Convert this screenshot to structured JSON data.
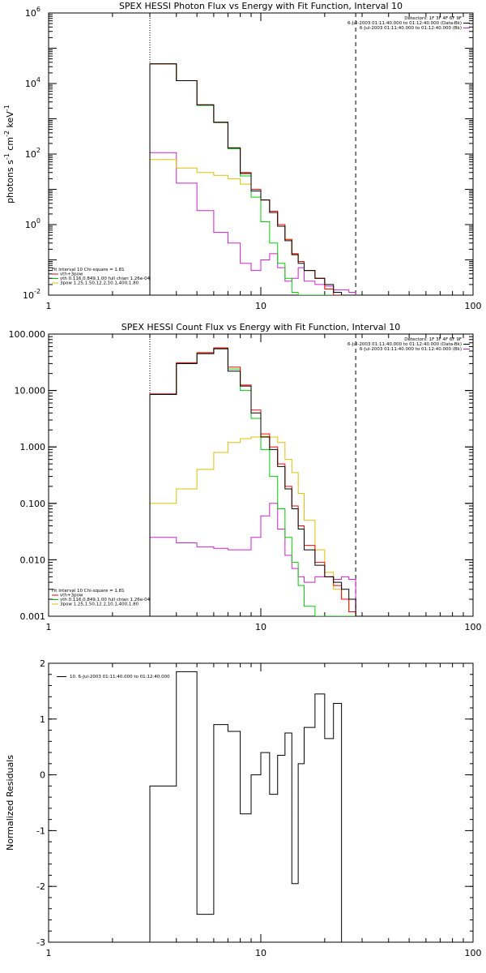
{
  "chart_data": [
    {
      "type": "line",
      "title": "SPEX HESSI Photon Flux vs Energy with Fit Function, Interval 10",
      "ylabel_main": "photons s",
      "ylabel_sup1": "-1",
      "ylabel_mid": " cm",
      "ylabel_sup2": "-2",
      "ylabel_end": " keV",
      "ylabel_sup3": "-1",
      "xscale": "log",
      "yscale": "log",
      "xlim": [
        1,
        100
      ],
      "ylim": [
        0.01,
        1000000
      ],
      "x_ticks": [
        {
          "v": 1,
          "label": "1"
        },
        {
          "v": 10,
          "label": "10"
        },
        {
          "v": 100,
          "label": "100"
        }
      ],
      "y_ticks": [
        {
          "v": 0.01,
          "base": "10",
          "exp": "-2"
        },
        {
          "v": 1,
          "base": "10",
          "exp": "0"
        },
        {
          "v": 100,
          "base": "10",
          "exp": "2"
        },
        {
          "v": 10000,
          "base": "10",
          "exp": "4"
        },
        {
          "v": 1000000,
          "base": "10",
          "exp": "6"
        }
      ],
      "vlines": [
        {
          "x": 3.0,
          "style": "dotted"
        },
        {
          "x": 28,
          "style": "dashed"
        }
      ],
      "header": [
        "Detectors: 1F 3F 4F 6F 9F",
        "6-Jul-2003 01:11:40.000 to 01:12:40.000 (Data-Bk)",
        "6-Jul-2003 01:11:40.000 to 01:12:40.000 (Bk)"
      ],
      "header_colors": [
        "#000000",
        "#000000",
        "#d020d0"
      ],
      "legend": [
        {
          "text": "Fit Interval 10   Chi-square = 1.81",
          "color": "#000000"
        },
        {
          "text": "vth+3pow",
          "color": "#ff0000"
        },
        {
          "text": "vth 0.116,0.849,1.00  full chian 1.26e-04",
          "color": "#00c000"
        },
        {
          "text": "3pow 1.25,1.50,12.2,10.1,400,1.80",
          "color": "#e0c000"
        }
      ],
      "edges": [
        3.0,
        4.0,
        5.0,
        6.0,
        7.0,
        8.0,
        9.0,
        10.0,
        11.0,
        12.0,
        13.0,
        14.0,
        15.0,
        16.0,
        18.0,
        20.0,
        22.0,
        24.0,
        26.0,
        28.0
      ],
      "series": [
        {
          "name": "Data-Bk",
          "color": "#000000",
          "values": [
            36000,
            12000,
            2500,
            800,
            150,
            28,
            9,
            5,
            2.2,
            0.9,
            0.35,
            0.14,
            0.08,
            0.05,
            0.03,
            0.02,
            0.012,
            0.008,
            0.004
          ]
        },
        {
          "name": "vth+3pow",
          "color": "#ff0000",
          "values": [
            36000,
            12000,
            2500,
            800,
            150,
            30,
            10,
            5,
            2.4,
            1.0,
            0.38,
            0.15,
            0.09,
            0.05,
            0.03,
            0.015,
            0.009,
            0.006,
            0.005
          ]
        },
        {
          "name": "vth",
          "color": "#00d000",
          "values": [
            36000,
            12000,
            2400,
            780,
            140,
            24,
            6,
            1.2,
            0.3,
            0.08,
            0.03,
            0.012,
            0.01,
            0.01,
            0.01,
            0.01,
            0.01,
            0.01,
            0.01
          ]
        },
        {
          "name": "3pow",
          "color": "#e0c000",
          "values": [
            70,
            40,
            30,
            25,
            20,
            14,
            10,
            5,
            2.4,
            1.0,
            0.38,
            0.15,
            0.09,
            0.05,
            0.03,
            0.015,
            0.009,
            0.006,
            0.005
          ]
        },
        {
          "name": "Bk",
          "color": "#d020d0",
          "values": [
            110,
            15,
            2.5,
            0.6,
            0.3,
            0.08,
            0.05,
            0.1,
            0.15,
            0.06,
            0.025,
            0.03,
            0.06,
            0.025,
            0.02,
            0.018,
            0.014,
            0.014,
            0.012
          ]
        }
      ]
    },
    {
      "type": "line",
      "title": "SPEX HESSI Count Flux vs Energy with Fit Function, Interval 10",
      "ylabel_main": "",
      "xscale": "log",
      "yscale": "log",
      "xlim": [
        1,
        100
      ],
      "ylim": [
        0.001,
        100
      ],
      "x_ticks": [
        {
          "v": 1,
          "label": "1"
        },
        {
          "v": 10,
          "label": "10"
        },
        {
          "v": 100,
          "label": "100"
        }
      ],
      "y_ticks": [
        {
          "v": 0.001,
          "label": "0.001"
        },
        {
          "v": 0.01,
          "label": "0.010"
        },
        {
          "v": 0.1,
          "label": "0.100"
        },
        {
          "v": 1,
          "label": "1.000"
        },
        {
          "v": 10,
          "label": "10.000"
        },
        {
          "v": 100,
          "label": "100.000"
        }
      ],
      "vlines": [
        {
          "x": 3.0,
          "style": "dotted"
        },
        {
          "x": 28,
          "style": "dashed"
        }
      ],
      "header": [
        "Detectors: 1F 3F 4F 6F 9F",
        "6-Jul-2003 01:11:40.000 to 01:12:40.000 (Data-Bk)",
        "6-Jul-2003 01:11:40.000 to 01:12:40.000 (Bk)"
      ],
      "header_colors": [
        "#000000",
        "#000000",
        "#d020d0"
      ],
      "legend": [
        {
          "text": "Fit Interval 10   Chi-square = 1.81",
          "color": "#000000"
        },
        {
          "text": "vth+3pow",
          "color": "#ff0000"
        },
        {
          "text": "vth 0.116,0.849,1.00  full chian 1.26e-04",
          "color": "#00c000"
        },
        {
          "text": "3pow 1.25,1.50,12.2,10.1,400,1.80",
          "color": "#e0c000"
        }
      ],
      "edges": [
        3.0,
        4.0,
        5.0,
        6.0,
        7.0,
        8.0,
        9.0,
        10.0,
        11.0,
        12.0,
        13.0,
        14.0,
        15.0,
        16.0,
        18.0,
        20.0,
        22.0,
        24.0,
        26.0,
        28.0
      ],
      "series": [
        {
          "name": "Data-Bk",
          "color": "#000000",
          "values": [
            8.5,
            30,
            45,
            55,
            22,
            12,
            4,
            1.5,
            0.9,
            0.45,
            0.18,
            0.08,
            0.035,
            0.015,
            0.008,
            0.005,
            0.004,
            0.003,
            0.002
          ]
        },
        {
          "name": "vth+3pow",
          "color": "#ff0000",
          "values": [
            8.7,
            31,
            47,
            57,
            26,
            12.5,
            4.5,
            1.7,
            1.0,
            0.5,
            0.2,
            0.09,
            0.04,
            0.018,
            0.009,
            0.005,
            0.0035,
            0.002,
            0.0012
          ]
        },
        {
          "name": "vth",
          "color": "#00d000",
          "values": [
            8.5,
            30,
            45,
            55,
            24,
            10,
            3.2,
            0.9,
            0.3,
            0.08,
            0.025,
            0.009,
            0.0035,
            0.0015,
            0.001,
            0.001,
            0.001,
            0.001,
            0.001
          ]
        },
        {
          "name": "3pow",
          "color": "#e0c000",
          "values": [
            0.1,
            0.18,
            0.4,
            0.8,
            1.2,
            1.4,
            1.5,
            1.55,
            1.5,
            1.2,
            0.6,
            0.35,
            0.15,
            0.05,
            0.015,
            0.006,
            0.003,
            0.002,
            0.0012
          ]
        },
        {
          "name": "Bk",
          "color": "#d020d0",
          "values": [
            0.025,
            0.02,
            0.017,
            0.016,
            0.015,
            0.015,
            0.025,
            0.06,
            0.1,
            0.035,
            0.012,
            0.007,
            0.005,
            0.004,
            0.005,
            0.005,
            0.0045,
            0.005,
            0.0045
          ]
        }
      ]
    },
    {
      "type": "line",
      "title": "",
      "ylabel_main": "Normalized Residuals",
      "xscale": "log",
      "yscale": "linear",
      "xlim": [
        1,
        100
      ],
      "ylim": [
        -3,
        2
      ],
      "x_ticks": [
        {
          "v": 1,
          "label": "1"
        },
        {
          "v": 10,
          "label": "10"
        },
        {
          "v": 100,
          "label": "100"
        }
      ],
      "y_ticks": [
        {
          "v": -3,
          "label": "-3"
        },
        {
          "v": -2,
          "label": "-2"
        },
        {
          "v": -1,
          "label": "-1"
        },
        {
          "v": 0,
          "label": "0"
        },
        {
          "v": 1,
          "label": "1"
        },
        {
          "v": 2,
          "label": "2"
        }
      ],
      "legend": [
        {
          "text": "10.  6-Jul-2003 01:11:40.000 to 01:12:40.000",
          "color": "#000000"
        }
      ],
      "edges": [
        3.0,
        4.0,
        5.0,
        6.0,
        7.0,
        8.0,
        9.0,
        10.0,
        11.0,
        12.0,
        13.0,
        14.0,
        15.0,
        16.0,
        18.0,
        20.0,
        22.0,
        24.0,
        26.0,
        28.0
      ],
      "series": [
        {
          "name": "10",
          "color": "#000000",
          "values": [
            -0.2,
            1.85,
            -2.5,
            0.9,
            0.78,
            -0.7,
            0.0,
            0.4,
            -0.35,
            0.35,
            0.75,
            -1.95,
            0.2,
            0.85,
            1.45,
            0.65,
            1.28,
            -3.0,
            -3.0
          ]
        }
      ]
    }
  ]
}
